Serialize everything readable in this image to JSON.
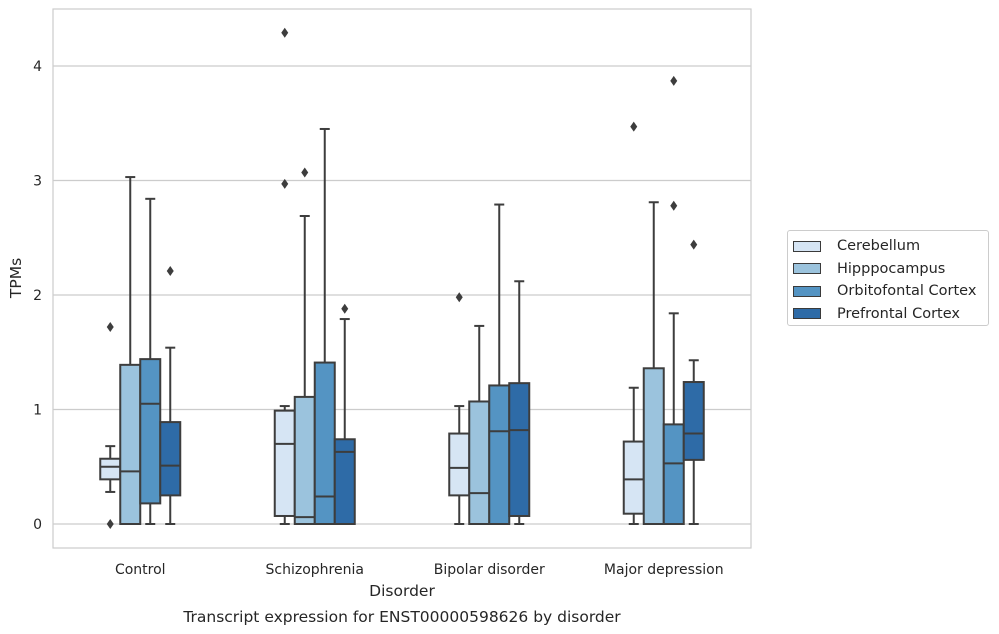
{
  "chart_data": {
    "type": "box",
    "title": "Transcript expression for ENST00000598626 by disorder",
    "xlabel": "Disorder",
    "ylabel": "TPMs",
    "ylim": [
      -0.21,
      4.5
    ],
    "yticks": [
      0,
      1,
      2,
      3,
      4
    ],
    "grid": "horizontal",
    "legend_position": "right",
    "categories": [
      "Control",
      "Schizophrenia",
      "Bipolar disorder",
      "Major depression"
    ],
    "series": [
      {
        "name": "Cerebellum",
        "color": "#d6e5f4",
        "boxes": [
          {
            "whisker_low": 0.28,
            "q1": 0.39,
            "median": 0.5,
            "q3": 0.57,
            "whisker_high": 0.68,
            "outliers": [
              1.72,
              0.0
            ]
          },
          {
            "whisker_low": 0.0,
            "q1": 0.07,
            "median": 0.7,
            "q3": 0.99,
            "whisker_high": 1.03,
            "outliers": [
              4.29,
              2.97
            ]
          },
          {
            "whisker_low": 0.0,
            "q1": 0.25,
            "median": 0.49,
            "q3": 0.79,
            "whisker_high": 1.03,
            "outliers": [
              1.98
            ]
          },
          {
            "whisker_low": 0.0,
            "q1": 0.09,
            "median": 0.39,
            "q3": 0.72,
            "whisker_high": 1.19,
            "outliers": [
              3.47
            ]
          }
        ]
      },
      {
        "name": "Hipppocampus",
        "color": "#9bc3dd",
        "boxes": [
          {
            "whisker_low": 0.0,
            "q1": 0.0,
            "median": 0.46,
            "q3": 1.39,
            "whisker_high": 3.03,
            "outliers": []
          },
          {
            "whisker_low": 0.0,
            "q1": 0.0,
            "median": 0.06,
            "q3": 1.11,
            "whisker_high": 2.69,
            "outliers": [
              3.07
            ]
          },
          {
            "whisker_low": 0.0,
            "q1": 0.0,
            "median": 0.27,
            "q3": 1.07,
            "whisker_high": 1.73,
            "outliers": []
          },
          {
            "whisker_low": 0.0,
            "q1": 0.0,
            "median": 0.0,
            "q3": 1.36,
            "whisker_high": 2.81,
            "outliers": []
          }
        ]
      },
      {
        "name": "Orbitofontal Cortex",
        "color": "#5494c3",
        "boxes": [
          {
            "whisker_low": 0.0,
            "q1": 0.18,
            "median": 1.05,
            "q3": 1.44,
            "whisker_high": 2.84,
            "outliers": []
          },
          {
            "whisker_low": 0.0,
            "q1": 0.0,
            "median": 0.24,
            "q3": 1.41,
            "whisker_high": 3.45,
            "outliers": []
          },
          {
            "whisker_low": 0.0,
            "q1": 0.0,
            "median": 0.81,
            "q3": 1.21,
            "whisker_high": 2.79,
            "outliers": []
          },
          {
            "whisker_low": 0.0,
            "q1": 0.0,
            "median": 0.53,
            "q3": 0.87,
            "whisker_high": 1.84,
            "outliers": [
              3.87,
              2.78
            ]
          }
        ]
      },
      {
        "name": "Prefrontal Cortex",
        "color": "#2e6ba7",
        "boxes": [
          {
            "whisker_low": 0.0,
            "q1": 0.25,
            "median": 0.51,
            "q3": 0.89,
            "whisker_high": 1.54,
            "outliers": [
              2.21
            ]
          },
          {
            "whisker_low": 0.0,
            "q1": 0.0,
            "median": 0.63,
            "q3": 0.74,
            "whisker_high": 1.79,
            "outliers": [
              1.88
            ]
          },
          {
            "whisker_low": 0.0,
            "q1": 0.07,
            "median": 0.82,
            "q3": 1.23,
            "whisker_high": 2.12,
            "outliers": []
          },
          {
            "whisker_low": 0.0,
            "q1": 0.56,
            "median": 0.79,
            "q3": 1.24,
            "whisker_high": 1.43,
            "outliers": [
              2.44
            ]
          }
        ]
      }
    ]
  }
}
